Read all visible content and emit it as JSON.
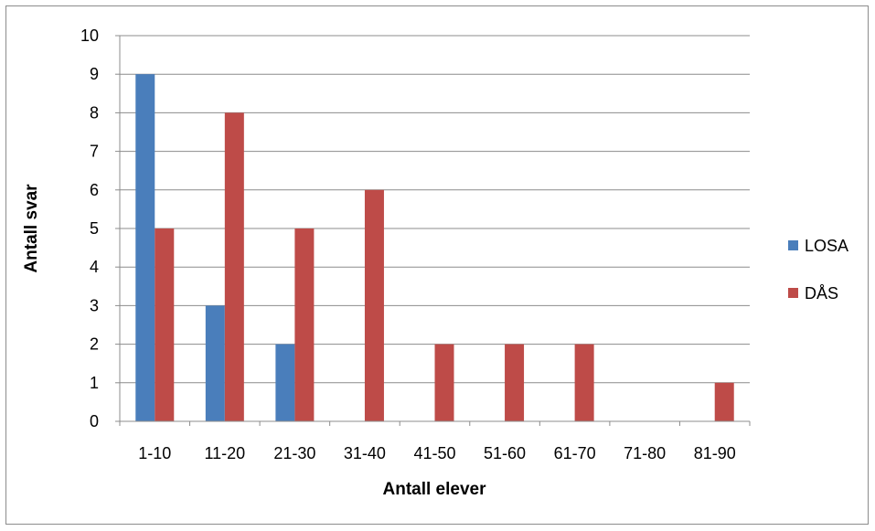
{
  "chart_data": {
    "type": "bar",
    "categories": [
      "1-10",
      "11-20",
      "21-30",
      "31-40",
      "41-50",
      "51-60",
      "61-70",
      "71-80",
      "81-90"
    ],
    "series": [
      {
        "name": "LOSA",
        "color": "#4a7ebb",
        "values": [
          9,
          3,
          2,
          0,
          0,
          0,
          0,
          0,
          0
        ]
      },
      {
        "name": "DÅS",
        "color": "#be4b48",
        "values": [
          5,
          8,
          5,
          6,
          2,
          2,
          2,
          0,
          1
        ]
      }
    ],
    "xlabel": "Antall elever",
    "ylabel": "Antall svar",
    "ylim": [
      0,
      10
    ],
    "yticks": [
      0,
      1,
      2,
      3,
      4,
      5,
      6,
      7,
      8,
      9,
      10
    ],
    "grid": true,
    "legend_position": "right"
  }
}
